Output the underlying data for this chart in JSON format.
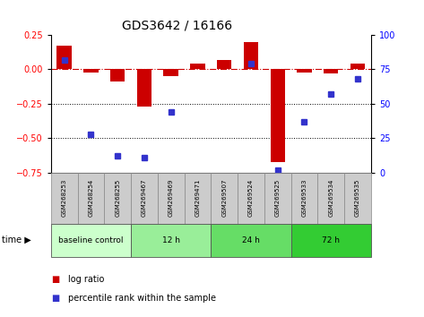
{
  "title": "GDS3642 / 16166",
  "samples": [
    "GSM268253",
    "GSM268254",
    "GSM268255",
    "GSM269467",
    "GSM269469",
    "GSM269471",
    "GSM269507",
    "GSM269524",
    "GSM269525",
    "GSM269533",
    "GSM269534",
    "GSM269535"
  ],
  "log_ratio": [
    0.17,
    -0.02,
    -0.09,
    -0.27,
    -0.05,
    0.04,
    0.07,
    0.2,
    -0.67,
    -0.02,
    -0.03,
    0.04
  ],
  "percentile_rank": [
    82,
    28,
    12,
    11,
    44,
    null,
    null,
    79,
    2,
    37,
    57,
    68
  ],
  "ylim_left": [
    -0.75,
    0.25
  ],
  "ylim_right": [
    0,
    100
  ],
  "bar_color": "#cc0000",
  "dot_color": "#3333cc",
  "hline_color": "#cc0000",
  "dotted_line_color": "#000000",
  "groups": [
    {
      "label": "baseline control",
      "start": 0,
      "end": 3,
      "color": "#ccffcc"
    },
    {
      "label": "12 h",
      "start": 3,
      "end": 6,
      "color": "#99ee99"
    },
    {
      "label": "24 h",
      "start": 6,
      "end": 9,
      "color": "#66dd66"
    },
    {
      "label": "72 h",
      "start": 9,
      "end": 12,
      "color": "#33cc33"
    }
  ],
  "yticks_left": [
    -0.75,
    -0.5,
    -0.25,
    0.0,
    0.25
  ],
  "yticks_right": [
    0,
    25,
    50,
    75,
    100
  ],
  "background_color": "#ffffff",
  "plot_bg": "#ffffff",
  "grid_dotted_vals": [
    -0.25,
    -0.5
  ],
  "label_bg": "#cccccc",
  "bar_width": 0.55
}
